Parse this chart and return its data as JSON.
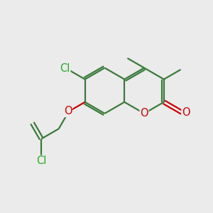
{
  "bg_color": "#ebebeb",
  "bond_color": "#3a7a3a",
  "o_color": "#cc0000",
  "cl_color": "#22aa22",
  "line_width": 1.6,
  "font_size": 10.5,
  "figsize": [
    3.0,
    3.0
  ],
  "dpi": 100,
  "xlim": [
    0,
    10
  ],
  "ylim": [
    0,
    10
  ]
}
